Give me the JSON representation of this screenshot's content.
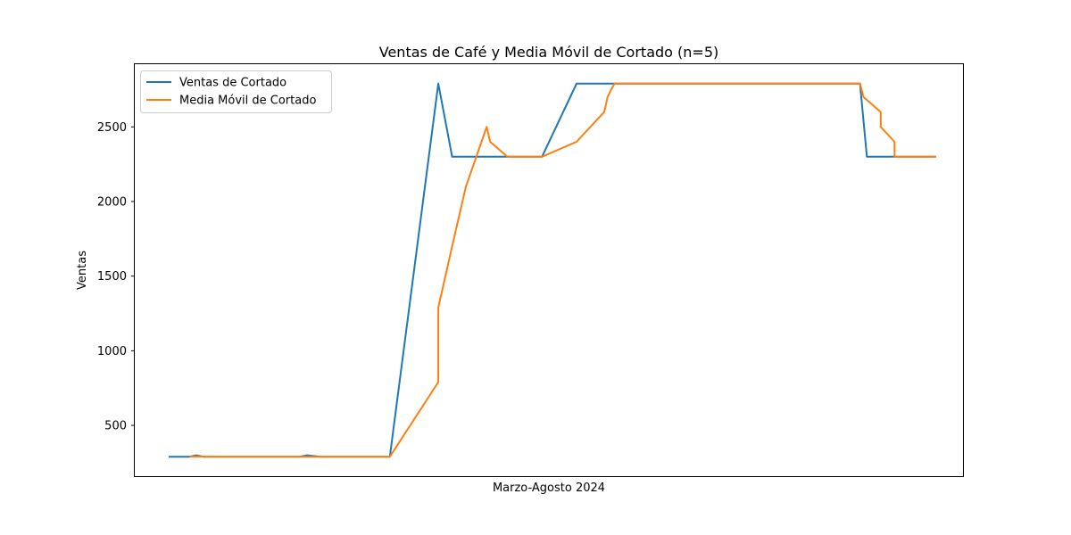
{
  "chart_data": {
    "type": "line",
    "title": "Ventas de Café y Media Móvil de Cortado (n=5)",
    "xlabel": "Marzo-Agosto 2024",
    "ylabel": "Ventas",
    "x_range": [
      -1.9,
      117.9
    ],
    "ylim": [
      160,
      2920
    ],
    "yticks": [
      500,
      1000,
      1500,
      2000,
      2500
    ],
    "grid": false,
    "legend_position": "top-left",
    "series": [
      {
        "name": "Ventas de Cortado",
        "color": "#1f77b4",
        "points": [
          [
            3,
            290
          ],
          [
            6,
            290
          ],
          [
            7,
            300
          ],
          [
            8,
            290
          ],
          [
            22,
            290
          ],
          [
            23,
            300
          ],
          [
            25,
            290
          ],
          [
            35,
            290
          ],
          [
            42,
            2790
          ],
          [
            44,
            2300
          ],
          [
            52,
            2300
          ],
          [
            57,
            2300
          ],
          [
            62,
            2790
          ],
          [
            67,
            2790
          ],
          [
            69,
            2790
          ],
          [
            103,
            2790
          ],
          [
            104,
            2300
          ],
          [
            108,
            2300
          ],
          [
            114,
            2300
          ]
        ]
      },
      {
        "name": "Media Móvil de Cortado",
        "color": "#ff7f0e",
        "points": [
          [
            6,
            290
          ],
          [
            7,
            292
          ],
          [
            10,
            290
          ],
          [
            35,
            290
          ],
          [
            42,
            790
          ],
          [
            42,
            1290
          ],
          [
            44,
            1700
          ],
          [
            46,
            2100
          ],
          [
            49,
            2500
          ],
          [
            49.5,
            2400
          ],
          [
            52,
            2300
          ],
          [
            57,
            2300
          ],
          [
            62,
            2400
          ],
          [
            64,
            2500
          ],
          [
            66,
            2600
          ],
          [
            66.5,
            2700
          ],
          [
            67,
            2750
          ],
          [
            67.5,
            2790
          ],
          [
            103,
            2790
          ],
          [
            103.5,
            2700
          ],
          [
            106,
            2600
          ],
          [
            106,
            2500
          ],
          [
            108,
            2400
          ],
          [
            108,
            2300
          ],
          [
            114,
            2300
          ]
        ]
      }
    ]
  }
}
